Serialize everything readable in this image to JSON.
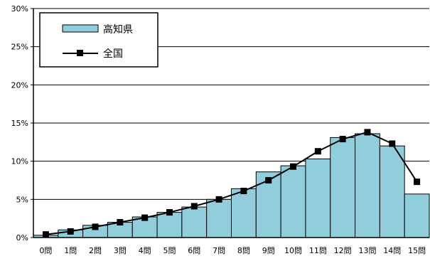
{
  "chart_data": {
    "type": "bar",
    "categories": [
      "0問",
      "1問",
      "2問",
      "3問",
      "4問",
      "5問",
      "6問",
      "7問",
      "8問",
      "9問",
      "10問",
      "11問",
      "12問",
      "13問",
      "14問",
      "15問"
    ],
    "series": [
      {
        "name": "高知県",
        "kind": "bar",
        "color": "#92cddc",
        "values": [
          0.3,
          1.0,
          1.6,
          2.0,
          2.7,
          3.3,
          4.0,
          5.0,
          6.4,
          8.6,
          9.4,
          10.3,
          13.1,
          13.6,
          12.0,
          5.7
        ]
      },
      {
        "name": "全国",
        "kind": "line",
        "color": "#000000",
        "marker": "square",
        "values": [
          0.4,
          0.8,
          1.4,
          2.0,
          2.6,
          3.3,
          4.1,
          5.0,
          6.1,
          7.5,
          9.3,
          11.3,
          12.9,
          13.8,
          12.3,
          7.3
        ]
      }
    ],
    "ylim": [
      0,
      30
    ],
    "yticks": [
      "0%",
      "5%",
      "10%",
      "15%",
      "20%",
      "25%",
      "30%"
    ],
    "grid": true,
    "legend_position": "top-left"
  }
}
